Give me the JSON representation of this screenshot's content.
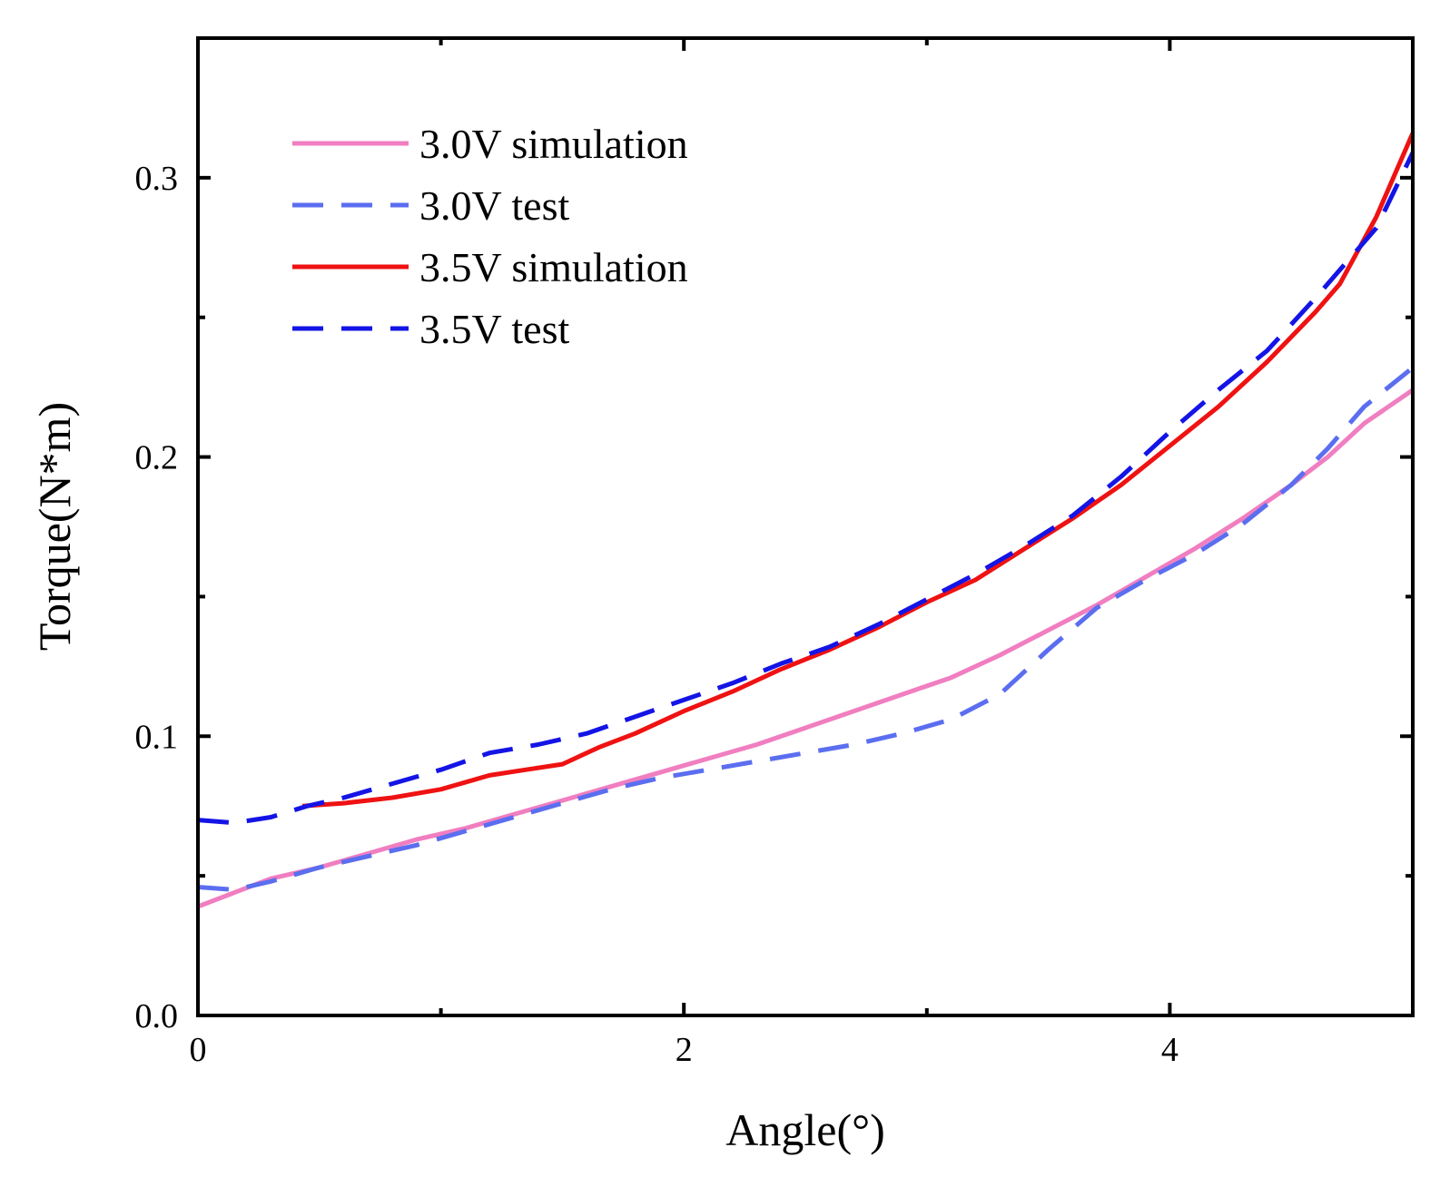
{
  "chart_data": {
    "type": "line",
    "title": "",
    "xlabel": "Angle(°)",
    "ylabel": "Torque(N*m)",
    "xlim": [
      0,
      5
    ],
    "ylim": [
      0,
      0.35
    ],
    "xticks": [
      0,
      2,
      4
    ],
    "xtick_labels": [
      "0",
      "2",
      "4"
    ],
    "xminor": [
      1,
      3,
      5
    ],
    "yticks": [
      0.0,
      0.1,
      0.2,
      0.3
    ],
    "ytick_labels": [
      "0.0",
      "0.1",
      "0.2",
      "0.3"
    ],
    "yminor": [
      0.05,
      0.15,
      0.25
    ],
    "legend_position": "top-left",
    "series": [
      {
        "name": "3.0V simulation",
        "color": "#f07ec0",
        "dash": "solid",
        "x": [
          0,
          0.15,
          0.3,
          0.5,
          0.7,
          0.9,
          1.1,
          1.3,
          1.5,
          1.7,
          1.9,
          2.1,
          2.3,
          2.5,
          2.7,
          2.9,
          3.1,
          3.3,
          3.5,
          3.7,
          3.9,
          4.1,
          4.3,
          4.5,
          4.65,
          4.8,
          5.0
        ],
        "y": [
          0.039,
          0.044,
          0.049,
          0.053,
          0.058,
          0.063,
          0.067,
          0.072,
          0.077,
          0.082,
          0.087,
          0.092,
          0.097,
          0.103,
          0.109,
          0.115,
          0.121,
          0.129,
          0.138,
          0.147,
          0.157,
          0.167,
          0.178,
          0.19,
          0.2,
          0.212,
          0.224
        ]
      },
      {
        "name": "3.0V test",
        "color": "#5b6ef0",
        "dash": "dashed",
        "x": [
          0,
          0.15,
          0.3,
          0.5,
          0.7,
          0.9,
          1.1,
          1.3,
          1.5,
          1.7,
          1.9,
          2.1,
          2.3,
          2.5,
          2.7,
          2.9,
          3.1,
          3.3,
          3.5,
          3.7,
          3.9,
          4.1,
          4.3,
          4.5,
          4.65,
          4.8,
          5.0
        ],
        "y": [
          0.046,
          0.045,
          0.048,
          0.053,
          0.057,
          0.061,
          0.066,
          0.071,
          0.076,
          0.081,
          0.085,
          0.088,
          0.091,
          0.094,
          0.097,
          0.101,
          0.106,
          0.115,
          0.131,
          0.146,
          0.156,
          0.165,
          0.176,
          0.19,
          0.203,
          0.218,
          0.232
        ]
      },
      {
        "name": "3.5V simulation",
        "color": "#ef1212",
        "dash": "solid",
        "x": [
          0.43,
          0.6,
          0.8,
          1.0,
          1.2,
          1.35,
          1.5,
          1.65,
          1.8,
          2.0,
          2.2,
          2.4,
          2.6,
          2.8,
          3.0,
          3.2,
          3.4,
          3.6,
          3.8,
          4.0,
          4.2,
          4.4,
          4.6,
          4.7,
          4.85,
          5.0
        ],
        "y": [
          0.075,
          0.076,
          0.078,
          0.081,
          0.086,
          0.088,
          0.09,
          0.096,
          0.101,
          0.109,
          0.116,
          0.124,
          0.131,
          0.139,
          0.148,
          0.156,
          0.167,
          0.178,
          0.19,
          0.204,
          0.218,
          0.234,
          0.252,
          0.262,
          0.286,
          0.316
        ]
      },
      {
        "name": "3.5V test",
        "color": "#1414e6",
        "dash": "dashed",
        "x": [
          0,
          0.15,
          0.3,
          0.45,
          0.6,
          0.8,
          1.0,
          1.2,
          1.4,
          1.6,
          1.8,
          2.0,
          2.2,
          2.4,
          2.6,
          2.8,
          3.0,
          3.2,
          3.4,
          3.6,
          3.8,
          4.0,
          4.2,
          4.4,
          4.6,
          4.7,
          4.85,
          5.0
        ],
        "y": [
          0.07,
          0.069,
          0.071,
          0.075,
          0.078,
          0.083,
          0.088,
          0.094,
          0.097,
          0.101,
          0.107,
          0.113,
          0.119,
          0.126,
          0.132,
          0.14,
          0.149,
          0.158,
          0.168,
          0.179,
          0.193,
          0.209,
          0.224,
          0.238,
          0.257,
          0.267,
          0.282,
          0.309
        ]
      }
    ]
  }
}
